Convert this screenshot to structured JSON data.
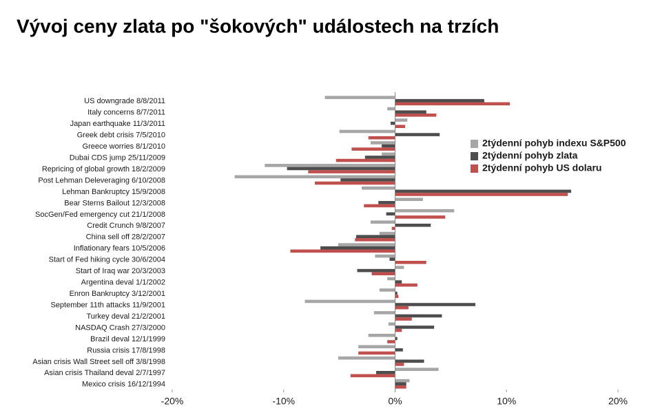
{
  "chart_data": {
    "type": "hbar",
    "title": "Vývoj ceny zlata po \"šokových\" událostech na trzích",
    "categories": [
      "US downgrade 8/8/2011",
      "Italy concerns 8/7/2011",
      "Japan earthquake 11/3/2011",
      "Greek debt crisis 7/5/2010",
      "Greece worries 8/1/2010",
      "Dubai CDS jump 25/11/2009",
      "Repricing of global growth 18/2/2009",
      "Post Lehman Deleveraging 6/10/2008",
      "Lehman Bankruptcy 15/9/2008",
      "Bear Sterns Bailout 12/3/2008",
      "SocGen/Fed emergency cut 21/1/2008",
      "Credit Crunch 9/8/2007",
      "China sell off 28/2/2007",
      "Inflationary fears 10/5/2006",
      "Start of Fed hiking cycle 30/6/2004",
      "Start of Iraq war 20/3/2003",
      "Argentina deval 1/1/2002",
      "Enron Bankruptcy 3/12/2001",
      "September 11th attacks 11/9/2001",
      "Turkey deval 21/2/2001",
      "NASDAQ Crash 27/3/2000",
      "Brazil deval 12/1/1999",
      "Russia crisis 17/8/1998",
      "Asian crisis Wall Street sell off 3/8/1998",
      "Asian crisis Thailand deval 2/7/1997",
      "Mexico crisis 16/12/1994"
    ],
    "series": [
      {
        "name": "2týdenní pohyb indexu S&P500",
        "color": "#a6a6a6",
        "values": [
          -6.3,
          -0.7,
          1.1,
          -5.0,
          -2.2,
          -1.2,
          -11.7,
          -14.4,
          -3.0,
          2.5,
          5.3,
          -2.2,
          -1.4,
          -5.1,
          -1.8,
          0.8,
          -0.7,
          -1.4,
          -8.1,
          -1.9,
          -0.6,
          -2.4,
          -3.3,
          -5.1,
          3.9,
          1.3
        ]
      },
      {
        "name": "2týdenní pohyb zlata",
        "color": "#4d4d4d",
        "values": [
          8.0,
          2.8,
          -0.4,
          4.0,
          -1.2,
          -2.7,
          -9.7,
          -4.9,
          15.8,
          -1.5,
          -0.8,
          3.2,
          -3.5,
          -6.7,
          -0.5,
          -3.4,
          0.6,
          0.2,
          7.2,
          4.2,
          3.5,
          0.2,
          0.7,
          2.6,
          -1.7,
          1.0
        ]
      },
      {
        "name": "2týdenní pohyb US dolaru",
        "color": "#c0504d",
        "values": [
          10.3,
          3.7,
          0.9,
          -2.4,
          -3.9,
          -5.3,
          -7.8,
          -7.2,
          15.5,
          -2.8,
          4.5,
          -0.3,
          -3.6,
          -9.4,
          2.8,
          -2.1,
          2.0,
          0.3,
          1.2,
          1.5,
          0.6,
          -0.7,
          -3.3,
          0.8,
          -4.0,
          1.0
        ]
      }
    ],
    "xlim": [
      -20,
      20
    ],
    "xticks": [
      {
        "value": -20,
        "label": "-20%"
      },
      {
        "value": -10,
        "label": "-10%"
      },
      {
        "value": 0,
        "label": "0%"
      },
      {
        "value": 10,
        "label": "10%"
      },
      {
        "value": 20,
        "label": "20%"
      }
    ]
  }
}
